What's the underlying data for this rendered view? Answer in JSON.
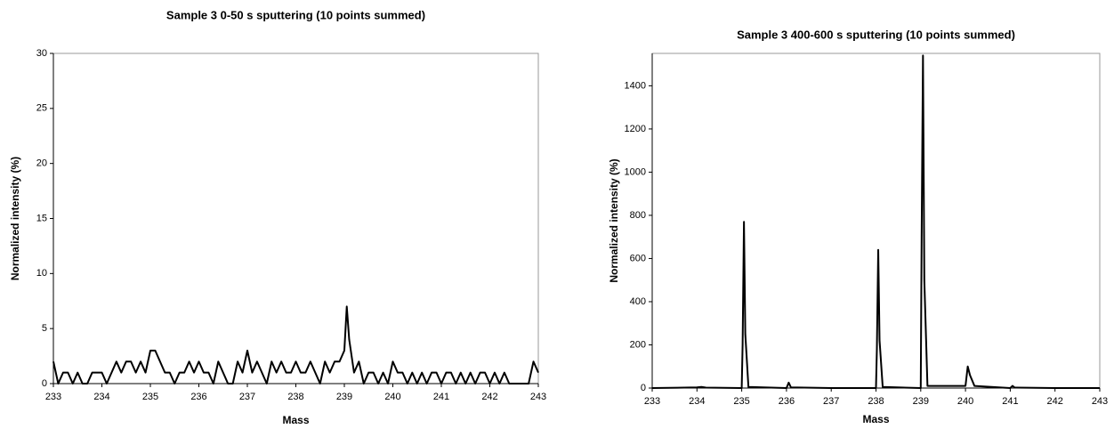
{
  "chart_data": [
    {
      "type": "line",
      "title": "Sample 3 0-50 s sputtering (10 points summed)",
      "xlabel": "Mass",
      "ylabel": "Normalized intensity (%)",
      "color": "#000000",
      "xlim": [
        233,
        243
      ],
      "ylim": [
        0,
        30
      ],
      "xticks": [
        233,
        234,
        235,
        236,
        237,
        238,
        239,
        240,
        241,
        242,
        243
      ],
      "yticks": [
        0,
        5,
        10,
        15,
        20,
        25,
        30
      ],
      "x": [
        233.0,
        233.1,
        233.2,
        233.3,
        233.4,
        233.5,
        233.6,
        233.7,
        233.8,
        233.9,
        234.0,
        234.1,
        234.2,
        234.3,
        234.4,
        234.5,
        234.6,
        234.7,
        234.8,
        234.9,
        235.0,
        235.1,
        235.2,
        235.3,
        235.4,
        235.5,
        235.6,
        235.7,
        235.8,
        235.9,
        236.0,
        236.1,
        236.2,
        236.3,
        236.4,
        236.5,
        236.6,
        236.7,
        236.8,
        236.9,
        237.0,
        237.1,
        237.2,
        237.3,
        237.4,
        237.5,
        237.6,
        237.7,
        237.8,
        237.9,
        238.0,
        238.1,
        238.2,
        238.3,
        238.4,
        238.5,
        238.6,
        238.7,
        238.8,
        238.9,
        239.0,
        239.05,
        239.1,
        239.2,
        239.3,
        239.4,
        239.5,
        239.6,
        239.7,
        239.8,
        239.9,
        240.0,
        240.1,
        240.2,
        240.3,
        240.4,
        240.5,
        240.6,
        240.7,
        240.8,
        240.9,
        241.0,
        241.1,
        241.2,
        241.3,
        241.4,
        241.5,
        241.6,
        241.7,
        241.8,
        241.9,
        242.0,
        242.1,
        242.2,
        242.3,
        242.4,
        242.5,
        242.6,
        242.7,
        242.8,
        242.9,
        243.0
      ],
      "values": [
        2,
        0,
        1,
        1,
        0,
        1,
        0,
        0,
        1,
        1,
        1,
        0,
        1,
        2,
        1,
        2,
        2,
        1,
        2,
        1,
        3,
        3,
        2,
        1,
        1,
        0,
        1,
        1,
        2,
        1,
        2,
        1,
        1,
        0,
        2,
        1,
        0,
        0,
        2,
        1,
        3,
        1,
        2,
        1,
        0,
        2,
        1,
        2,
        1,
        1,
        2,
        1,
        1,
        2,
        1,
        0,
        2,
        1,
        2,
        2,
        3,
        7,
        4,
        1,
        2,
        0,
        1,
        1,
        0,
        1,
        0,
        2,
        1,
        1,
        0,
        1,
        0,
        1,
        0,
        1,
        1,
        0,
        1,
        1,
        0,
        1,
        0,
        1,
        0,
        1,
        1,
        0,
        1,
        0,
        1,
        0,
        0,
        0,
        0,
        0,
        2,
        1
      ]
    },
    {
      "type": "line",
      "title": "Sample 3 400-600 s sputtering (10 points summed)",
      "xlabel": "Mass",
      "ylabel": "Normalized intensity (%)",
      "color": "#000000",
      "xlim": [
        233,
        243
      ],
      "ylim": [
        0,
        1550
      ],
      "xticks": [
        233,
        234,
        235,
        236,
        237,
        238,
        239,
        240,
        241,
        242,
        243
      ],
      "yticks": [
        0,
        200,
        400,
        600,
        800,
        1000,
        1200,
        1400
      ],
      "x": [
        233,
        234,
        234.1,
        234.2,
        235,
        235.02,
        235.05,
        235.08,
        235.15,
        236,
        236.05,
        236.1,
        237,
        238,
        238.02,
        238.05,
        238.08,
        238.15,
        239,
        239.02,
        239.05,
        239.08,
        239.15,
        240,
        240.05,
        240.1,
        240.2,
        241,
        241.05,
        241.1,
        242,
        243
      ],
      "values": [
        0,
        3,
        5,
        2,
        0,
        200,
        770,
        250,
        5,
        0,
        25,
        3,
        0,
        0,
        180,
        640,
        220,
        5,
        0,
        700,
        1540,
        500,
        10,
        10,
        100,
        60,
        10,
        0,
        10,
        2,
        0,
        0
      ]
    }
  ]
}
